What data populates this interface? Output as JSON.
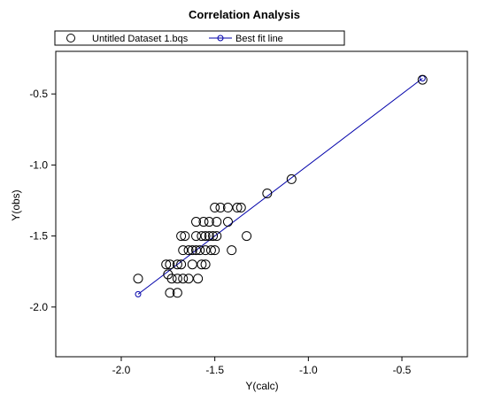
{
  "chart_data": {
    "type": "scatter",
    "title": "Correlation Analysis",
    "xlabel": "Y(calc)",
    "ylabel": "Y(obs)",
    "xlim": [
      -2.35,
      -0.15
    ],
    "ylim": [
      -2.35,
      -0.2
    ],
    "xticks": [
      {
        "value": -2.0,
        "label": "-2.0"
      },
      {
        "value": -1.5,
        "label": "-1.5"
      },
      {
        "value": -1.0,
        "label": "-1.0"
      },
      {
        "value": -0.5,
        "label": "-0.5"
      }
    ],
    "yticks": [
      {
        "value": -0.5,
        "label": "-0.5"
      },
      {
        "value": -1.0,
        "label": "-1.0"
      },
      {
        "value": -1.5,
        "label": "-1.5"
      },
      {
        "value": -2.0,
        "label": "-2.0"
      }
    ],
    "grid": false,
    "legend": {
      "placement": "top",
      "entries": [
        "Untitled Dataset 1.bqs",
        "Best fit line"
      ]
    },
    "series": [
      {
        "name": "Untitled Dataset 1.bqs",
        "kind": "scatter",
        "marker": "open-circle",
        "color": "#000000",
        "points": [
          [
            -1.91,
            -1.8
          ],
          [
            -1.76,
            -1.7
          ],
          [
            -1.74,
            -1.7
          ],
          [
            -1.7,
            -1.7
          ],
          [
            -1.68,
            -1.7
          ],
          [
            -1.62,
            -1.7
          ],
          [
            -1.57,
            -1.7
          ],
          [
            -1.55,
            -1.7
          ],
          [
            -1.75,
            -1.77
          ],
          [
            -1.73,
            -1.8
          ],
          [
            -1.7,
            -1.8
          ],
          [
            -1.67,
            -1.8
          ],
          [
            -1.64,
            -1.8
          ],
          [
            -1.59,
            -1.8
          ],
          [
            -1.74,
            -1.9
          ],
          [
            -1.7,
            -1.9
          ],
          [
            -1.67,
            -1.6
          ],
          [
            -1.64,
            -1.6
          ],
          [
            -1.62,
            -1.6
          ],
          [
            -1.6,
            -1.6
          ],
          [
            -1.58,
            -1.6
          ],
          [
            -1.55,
            -1.6
          ],
          [
            -1.52,
            -1.6
          ],
          [
            -1.5,
            -1.6
          ],
          [
            -1.41,
            -1.6
          ],
          [
            -1.68,
            -1.5
          ],
          [
            -1.66,
            -1.5
          ],
          [
            -1.6,
            -1.5
          ],
          [
            -1.57,
            -1.5
          ],
          [
            -1.55,
            -1.5
          ],
          [
            -1.53,
            -1.5
          ],
          [
            -1.51,
            -1.5
          ],
          [
            -1.49,
            -1.5
          ],
          [
            -1.33,
            -1.5
          ],
          [
            -1.6,
            -1.4
          ],
          [
            -1.56,
            -1.4
          ],
          [
            -1.53,
            -1.4
          ],
          [
            -1.49,
            -1.4
          ],
          [
            -1.43,
            -1.4
          ],
          [
            -1.5,
            -1.3
          ],
          [
            -1.47,
            -1.3
          ],
          [
            -1.43,
            -1.3
          ],
          [
            -1.38,
            -1.3
          ],
          [
            -1.36,
            -1.3
          ],
          [
            -1.22,
            -1.2
          ],
          [
            -1.09,
            -1.1
          ],
          [
            -0.39,
            -0.4
          ]
        ]
      },
      {
        "name": "Best fit line",
        "kind": "line",
        "marker": "small-open-circle",
        "color": "#0000aa",
        "points": [
          [
            -1.91,
            -1.91
          ],
          [
            -0.39,
            -0.39
          ]
        ]
      }
    ]
  }
}
